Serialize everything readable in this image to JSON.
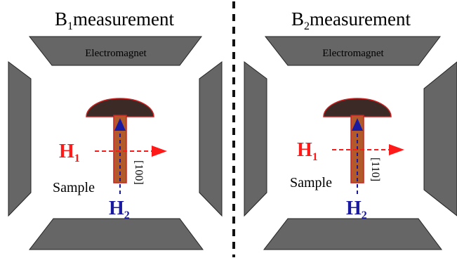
{
  "panels": [
    {
      "title_main": "B",
      "title_sub": "1",
      "title_rest": "measurement",
      "electromagnet_label": "Electromagnet",
      "h1_main": "H",
      "h1_sub": "1",
      "h2_main": "H",
      "h2_sub": "2",
      "sample_label": "Sample",
      "direction_label": "[100]"
    },
    {
      "title_main": "B",
      "title_sub": "2",
      "title_rest": "measurement",
      "electromagnet_label": "Electromagnet",
      "h1_main": "H",
      "h1_sub": "1",
      "h2_main": "H",
      "h2_sub": "2",
      "sample_label": "Sample",
      "direction_label": "[110]"
    }
  ],
  "colors": {
    "pole": "#666666",
    "pole_stroke": "#222222",
    "cap": "#3b2a25",
    "cap_stroke": "#cc2222",
    "sample": "#b25a2a",
    "sample_stroke": "#cc2222",
    "h1": "#ff1a1a",
    "h2": "#1a1aa0",
    "divider": "#111111"
  }
}
